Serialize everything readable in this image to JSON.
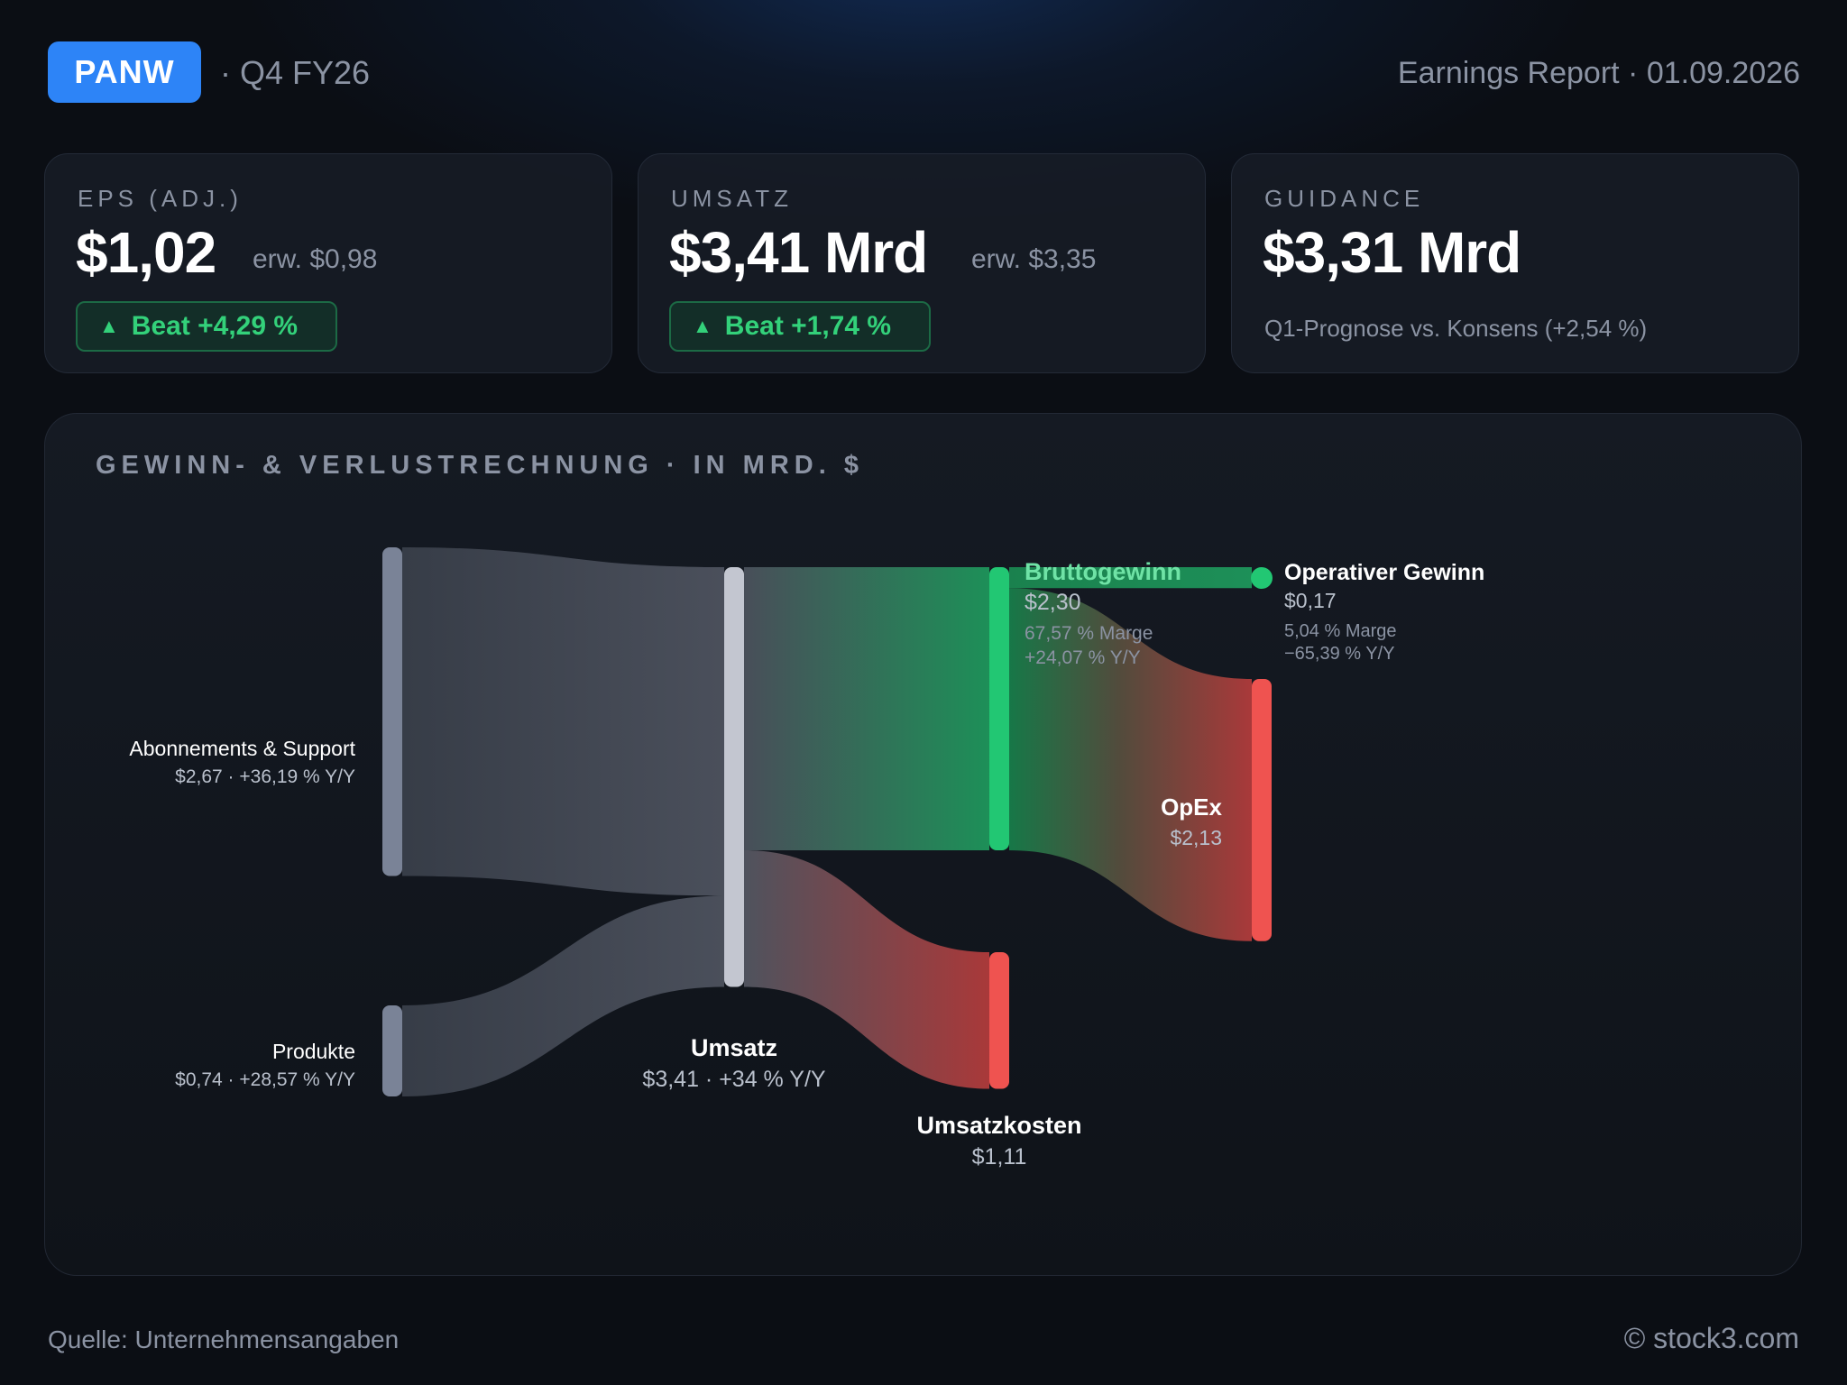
{
  "header": {
    "ticker": "PANW",
    "period": "· Q4 FY26",
    "report": "Earnings Report · 01.09.2026"
  },
  "cards": {
    "eps": {
      "label": "EPS (ADJ.)",
      "value": "$1,02",
      "expected": "erw. $0,98",
      "badge": "Beat +4,29 %"
    },
    "revenue": {
      "label": "UMSATZ",
      "value": "$3,41 Mrd",
      "expected": "erw. $3,35",
      "badge": "Beat +1,74 %"
    },
    "guidance": {
      "label": "GUIDANCE",
      "value": "$3,31 Mrd",
      "note": "Q1-Prognose vs. Konsens (+2,54 %)"
    }
  },
  "panel": {
    "title": "GEWINN- & VERLUSTRECHNUNG · IN MRD. $"
  },
  "chart_data": {
    "type": "sankey",
    "title": "GEWINN- & VERLUSTRECHNUNG · IN MRD. $",
    "unit": "Mrd. $",
    "nodes": [
      {
        "id": "subs",
        "name": "Abonnements & Support",
        "value": 2.67,
        "value_label": "$2,67 · +36,19 % Y/Y",
        "color": "#7a8397"
      },
      {
        "id": "prod",
        "name": "Produkte",
        "value": 0.74,
        "value_label": "$0,74 · +28,57 % Y/Y",
        "color": "#7a8397"
      },
      {
        "id": "rev",
        "name": "Umsatz",
        "value": 3.41,
        "value_label": "$3,41 · +34 % Y/Y",
        "color": "#c3c6d0"
      },
      {
        "id": "gross",
        "name": "Bruttogewinn",
        "value": 2.3,
        "value_label": "$2,30",
        "detail": [
          "67,57 % Marge",
          "+24,07 % Y/Y"
        ],
        "color": "#22c773"
      },
      {
        "id": "cogs",
        "name": "Umsatzkosten",
        "value": 1.11,
        "value_label": "$1,11",
        "color": "#ef5350"
      },
      {
        "id": "opinc",
        "name": "Operativer Gewinn",
        "value": 0.17,
        "value_label": "$0,17",
        "detail": [
          "5,04 % Marge",
          "−65,39 % Y/Y"
        ],
        "color": "#22c773"
      },
      {
        "id": "opex",
        "name": "OpEx",
        "value": 2.13,
        "value_label": "$2,13",
        "color": "#ef5350"
      }
    ],
    "links": [
      {
        "source": "subs",
        "target": "rev",
        "value": 2.67
      },
      {
        "source": "prod",
        "target": "rev",
        "value": 0.74
      },
      {
        "source": "rev",
        "target": "gross",
        "value": 2.3
      },
      {
        "source": "rev",
        "target": "cogs",
        "value": 1.11
      },
      {
        "source": "gross",
        "target": "opinc",
        "value": 0.17
      },
      {
        "source": "gross",
        "target": "opex",
        "value": 2.13
      }
    ]
  },
  "footer": {
    "source": "Quelle: Unternehmensangaben",
    "copyright": "© stock3.com"
  }
}
